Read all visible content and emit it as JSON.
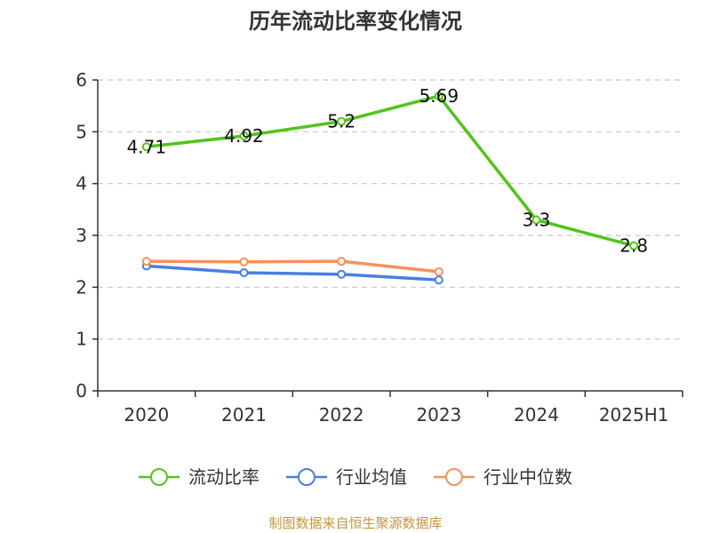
{
  "chart_data": {
    "type": "line",
    "title": "历年流动比率变化情况",
    "categories": [
      "2020",
      "2021",
      "2022",
      "2023",
      "2024",
      "2025H1"
    ],
    "ylim": [
      0,
      6
    ],
    "yticks": [
      0,
      1,
      2,
      3,
      4,
      5,
      6
    ],
    "grid": true,
    "legend_position": "bottom",
    "series": [
      {
        "name": "流动比率",
        "color": "#52c41a",
        "values": [
          4.71,
          4.92,
          5.2,
          5.69,
          3.3,
          2.8
        ],
        "labels": [
          "4.71",
          "4.92",
          "5.2",
          "5.69",
          "3.3",
          "2.8"
        ]
      },
      {
        "name": "行业均值",
        "color": "#4a7fe0",
        "values": [
          2.41,
          2.28,
          2.25,
          2.14,
          null,
          null
        ]
      },
      {
        "name": "行业中位数",
        "color": "#f5915c",
        "values": [
          2.5,
          2.49,
          2.5,
          2.3,
          null,
          null
        ]
      }
    ],
    "source": "制图数据来自恒生聚源数据库"
  }
}
